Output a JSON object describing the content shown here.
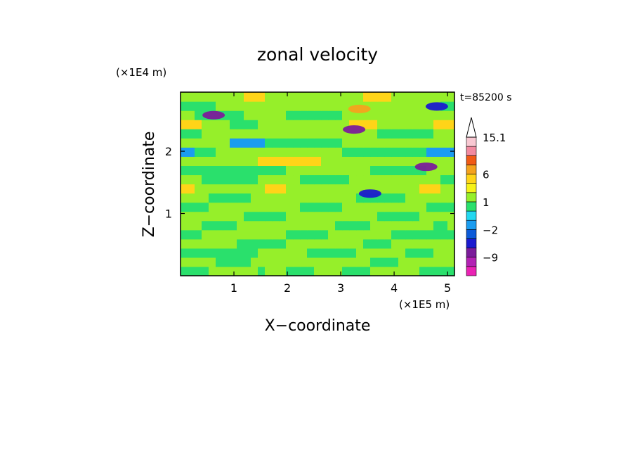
{
  "chart_data": {
    "type": "heatmap",
    "title": "zonal velocity",
    "xlabel": "X−coordinate",
    "ylabel": "Z−coordinate",
    "x_unit": "(×1E5 m)",
    "y_unit": "(×1E4 m)",
    "time_label": "t=85200 s",
    "xlim": [
      0,
      5.13
    ],
    "ylim": [
      0,
      2.95
    ],
    "x_ticks": [
      1,
      2,
      3,
      4,
      5
    ],
    "x_tick_labels": [
      "1",
      "2",
      "3",
      "4",
      "5"
    ],
    "y_ticks": [
      1,
      2
    ],
    "y_tick_labels": [
      "1",
      "2"
    ],
    "colorbar": {
      "levels": [
        -15,
        -12,
        -9,
        -6,
        -3,
        -2,
        -1,
        0,
        1,
        2,
        3,
        6,
        9,
        12,
        15.1
      ],
      "labeled_levels": [
        "15.1",
        "6",
        "1",
        "−2",
        "−9"
      ],
      "labeled_values": [
        15.1,
        6,
        1,
        -2,
        -9
      ],
      "colors": [
        "#ea22b4",
        "#b322b4",
        "#7b1c9a",
        "#1a1acf",
        "#0c5ad8",
        "#1a9cf0",
        "#22d8f0",
        "#2ae06c",
        "#96ef2a",
        "#f6f218",
        "#ffd418",
        "#f4a21e",
        "#f05a16",
        "#f28aa0",
        "#f8c8d2"
      ]
    },
    "field": {
      "rows_bottom_to_top": [
        "GGGGYYYYYYYGYYYGGGGYYYYGGGGYYYYYYYGGGGG",
        "YYYYYGGGGGYYYYYYYYYYYYYYYYYGGGGYYYYYYYY",
        "GGGGGGGGGGGYYYYYYYGGGGGGGYYYYYYYGGGGYYY",
        "YYYYYYYYGGGGGGGYYYYYYYYYYYGGGGYYYYYYYYY",
        "GGGYYYYYYYYYYYYGGGGGGYYYYYYYYYGGGGGGGGG",
        "YYYGGGGGYYYYYYYYYYYYYYGGGGGYYYYYYYYYGGY",
        "YYYYYYYYYGGGGGGYYYYYYYYYYYYYGGGGGGYYYYY",
        "GGGGYYYYYYYYYYYYYGGGGGGYYYYYYYYYYYYGGGG",
        "YYYYGGGGGGYYYYYYYYYYYYYYYGGGGGGGYYYYYYY",
        "OOYYYYYYYYYYOOOYYYYYYYYYYYYYYYYYYYOOOYY",
        "YYYGGGGGGGGYYYYYYGGGGGGGYYYYYYYYYYYYYGG",
        "GGGGGGGGGGGGGGGYYYYYYYYYYYYGGGGGGGGYYYY",
        "YYYYYYYYYYYOOOOOOOOOYYYYYYYYYYYYYYYYYYY",
        "CCGGGYYYYYYYYYYYYYYYYYYGGGGGGGGGGGGCCCC",
        "YYYYYYYCCCCCGGGGGGGGGGGYYYYYYYYYYYYYYYY",
        "GGGYYYYYYYYYYYYYYYYYYYYYYYYYGGGGGGGGYYY",
        "OOOYYYYGGGGYYYYYYYYYYYYYOOOOYYYYYYYYOOO",
        "YYGGGGGGGYYYYYYGGGGGGGGYYYYYYYYYYYYYYYY",
        "GGGGGYYYYYYYYYYYYYYYYYYYYYYYYYYYYYYYYGG",
        "YYYYYYYYYOOOYYYYYYYYYYYYYYOOOOYYYYYYYYY"
      ],
      "legend": {
        "Y": 1.5,
        "G": 0.5,
        "O": 4.5,
        "C": -1.5
      }
    },
    "extremes": [
      {
        "x": 0.62,
        "z": 2.58,
        "value": -9
      },
      {
        "x": 3.25,
        "z": 2.35,
        "value": -9
      },
      {
        "x": 4.6,
        "z": 1.75,
        "value": -9
      },
      {
        "x": 3.55,
        "z": 1.32,
        "value": -6
      },
      {
        "x": 3.35,
        "z": 2.68,
        "value": 6
      },
      {
        "x": 4.8,
        "z": 2.72,
        "value": -6
      }
    ]
  }
}
